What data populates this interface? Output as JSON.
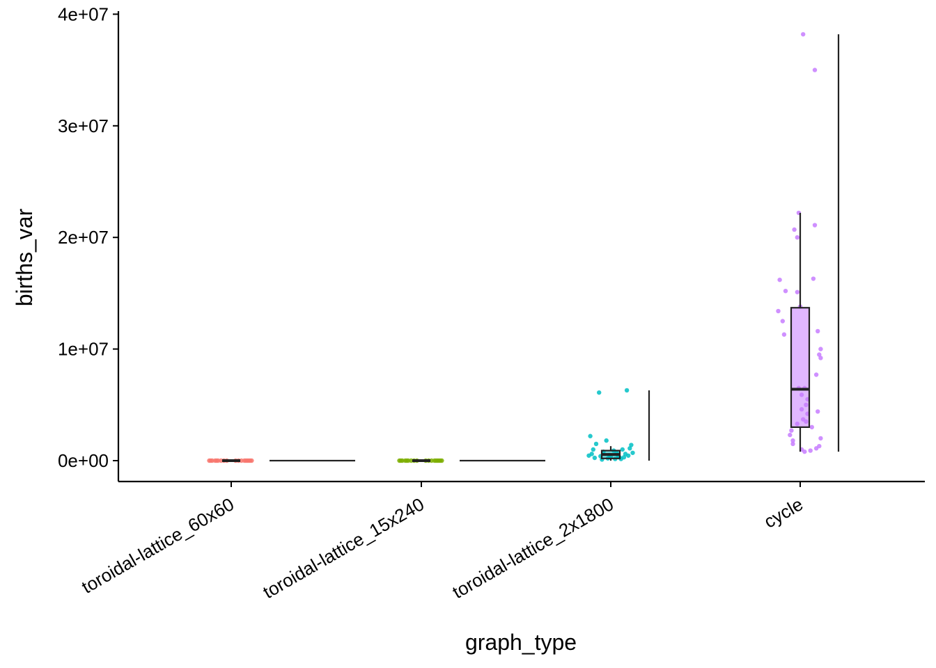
{
  "chart_data": {
    "type": "boxplot",
    "title": "",
    "xlabel": "graph_type",
    "ylabel": "births_var",
    "ylim": [
      -1800000,
      40000000
    ],
    "yticks": [
      0,
      10000000,
      20000000,
      30000000,
      40000000
    ],
    "ytick_labels": [
      "0e+00",
      "1e+07",
      "2e+07",
      "3e+07",
      "4e+07"
    ],
    "categories": [
      "toroidal-lattice_60x60",
      "toroidal-lattice_15x240",
      "toroidal-lattice_2x1800",
      "cycle"
    ],
    "grid": false,
    "legend": "none",
    "series": [
      {
        "category": "toroidal-lattice_60x60",
        "color": "#F8766D",
        "box": {
          "min": 0,
          "q1": 0,
          "median": 0,
          "q3": 0,
          "max": 0
        },
        "range": [
          0,
          0
        ],
        "points": [
          [
            -0.15,
            0
          ],
          [
            -0.13,
            0
          ],
          [
            -0.11,
            0
          ],
          [
            -0.09,
            0
          ],
          [
            -0.07,
            0
          ],
          [
            -0.05,
            0
          ],
          [
            -0.03,
            0
          ],
          [
            0.03,
            0
          ],
          [
            0.05,
            0
          ],
          [
            0.07,
            0
          ],
          [
            0.09,
            0
          ],
          [
            0.11,
            0
          ],
          [
            0.13,
            0
          ],
          [
            0.14,
            0
          ],
          [
            -0.14,
            0
          ],
          [
            0.12,
            0
          ],
          [
            -0.1,
            0
          ],
          [
            0.1,
            0
          ]
        ]
      },
      {
        "category": "toroidal-lattice_15x240",
        "color": "#7CAE00",
        "box": {
          "min": 0,
          "q1": 0,
          "median": 0,
          "q3": 0,
          "max": 0
        },
        "range": [
          0,
          0
        ],
        "points": [
          [
            -0.15,
            0
          ],
          [
            -0.13,
            0
          ],
          [
            -0.11,
            0
          ],
          [
            -0.09,
            0
          ],
          [
            -0.07,
            0
          ],
          [
            -0.05,
            0
          ],
          [
            -0.03,
            0
          ],
          [
            0.03,
            0
          ],
          [
            0.05,
            0
          ],
          [
            0.07,
            0
          ],
          [
            0.09,
            0
          ],
          [
            0.11,
            0
          ],
          [
            0.13,
            0
          ],
          [
            0.14,
            0
          ],
          [
            -0.14,
            0
          ],
          [
            0.12,
            0
          ],
          [
            -0.1,
            0
          ],
          [
            0.1,
            0
          ]
        ]
      },
      {
        "category": "toroidal-lattice_2x1800",
        "color": "#00BFC4",
        "box": {
          "min": 0,
          "q1": 200000,
          "median": 550000,
          "q3": 900000,
          "max": 1300000
        },
        "range": [
          0,
          6300000
        ],
        "points": [
          [
            -0.14,
            2200000
          ],
          [
            -0.08,
            6100000
          ],
          [
            0.11,
            6300000
          ],
          [
            -0.1,
            1500000
          ],
          [
            -0.03,
            1800000
          ],
          [
            0.14,
            1400000
          ],
          [
            0.13,
            1100000
          ],
          [
            0.08,
            1000000
          ],
          [
            -0.12,
            1000000
          ],
          [
            -0.05,
            800000
          ],
          [
            0.04,
            700000
          ],
          [
            0.1,
            600000
          ],
          [
            -0.15,
            450000
          ],
          [
            -0.07,
            400000
          ],
          [
            0.0,
            350000
          ],
          [
            0.06,
            300000
          ],
          [
            0.12,
            450000
          ],
          [
            -0.11,
            250000
          ],
          [
            -0.02,
            200000
          ],
          [
            0.03,
            150000
          ],
          [
            0.09,
            300000
          ],
          [
            -0.06,
            100000
          ],
          [
            0.15,
            700000
          ],
          [
            0.02,
            900000
          ],
          [
            -0.13,
            600000
          ],
          [
            0.07,
            150000
          ],
          [
            -0.01,
            500000
          ],
          [
            0.05,
            400000
          ]
        ]
      },
      {
        "category": "cycle",
        "color": "#C77CFF",
        "box": {
          "min": 800000,
          "q1": 3000000,
          "median": 6400000,
          "q3": 13700000,
          "max": 22200000
        },
        "range": [
          800000,
          38200000
        ],
        "points": [
          [
            0.02,
            38200000
          ],
          [
            0.1,
            35000000
          ],
          [
            -0.01,
            22200000
          ],
          [
            -0.04,
            20700000
          ],
          [
            0.1,
            21100000
          ],
          [
            -0.02,
            20000000
          ],
          [
            -0.14,
            16200000
          ],
          [
            0.09,
            16300000
          ],
          [
            -0.1,
            15200000
          ],
          [
            -0.02,
            15100000
          ],
          [
            0.0,
            13800000
          ],
          [
            -0.15,
            13400000
          ],
          [
            -0.12,
            12500000
          ],
          [
            0.12,
            11600000
          ],
          [
            -0.11,
            11300000
          ],
          [
            0.14,
            10000000
          ],
          [
            0.13,
            9500000
          ],
          [
            0.14,
            9200000
          ],
          [
            0.11,
            7700000
          ],
          [
            -0.01,
            6500000
          ],
          [
            0.03,
            6500000
          ],
          [
            0.01,
            5900000
          ],
          [
            0.05,
            5500000
          ],
          [
            0.04,
            5000000
          ],
          [
            0.01,
            4600000
          ],
          [
            0.12,
            4400000
          ],
          [
            0.05,
            4200000
          ],
          [
            0.02,
            3700000
          ],
          [
            -0.02,
            3300000
          ],
          [
            0.08,
            3000000
          ],
          [
            -0.06,
            2700000
          ],
          [
            -0.07,
            2300000
          ],
          [
            0.14,
            2000000
          ],
          [
            -0.05,
            1500000
          ],
          [
            0.11,
            1100000
          ],
          [
            0.13,
            1300000
          ],
          [
            0.01,
            1000000
          ],
          [
            0.03,
            800000
          ],
          [
            0.07,
            900000
          ],
          [
            0.04,
            3500000
          ],
          [
            -0.05,
            1800000
          ]
        ]
      }
    ]
  }
}
